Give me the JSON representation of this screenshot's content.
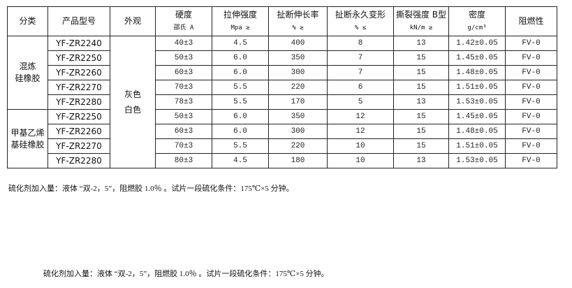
{
  "headers": [
    {
      "main": "分类",
      "sub": ""
    },
    {
      "main": "产品型号",
      "sub": ""
    },
    {
      "main": "外观",
      "sub": ""
    },
    {
      "main": "硬度",
      "sub": "邵氏 A"
    },
    {
      "main": "拉伸强度",
      "sub": "Mpa ≥"
    },
    {
      "main": "扯断伸长率",
      "sub": "% ≥"
    },
    {
      "main": "扯断永久变形",
      "sub": "% ≤"
    },
    {
      "main": "撕裂强度 B型",
      "sub": "kN/m ≥"
    },
    {
      "main": "密度",
      "sub": "g/cm³"
    },
    {
      "main": "阻燃性",
      "sub": ""
    }
  ],
  "categories": [
    {
      "line1": "混炼",
      "line2": "硅橡胶"
    },
    {
      "line1": "甲基乙烯",
      "line2": "基硅橡胶"
    }
  ],
  "appearance": {
    "line1": "灰色",
    "line2": "白色"
  },
  "rows": [
    [
      "YF-ZR2240",
      "40±3",
      "4.5",
      "400",
      "8",
      "13",
      "1.42±0.05",
      "FV-0"
    ],
    [
      "YF-ZR2250",
      "50±3",
      "6.0",
      "350",
      "7",
      "15",
      "1.45±0.05",
      "FV-0"
    ],
    [
      "YF-ZR2260",
      "60±3",
      "6.0",
      "300",
      "7",
      "15",
      "1.48±0.05",
      "FV-0"
    ],
    [
      "YF-ZR2270",
      "70±3",
      "5.5",
      "220",
      "6",
      "15",
      "1.51±0.05",
      "FV-0"
    ],
    [
      "YF-ZR2280",
      "78±3",
      "5.5",
      "170",
      "5",
      "13",
      "1.53±0.05",
      "FV-0"
    ],
    [
      "YF-ZR2250",
      "50±3",
      "6.0",
      "350",
      "12",
      "15",
      "1.45±0.05",
      "FV-0"
    ],
    [
      "YF-ZR2260",
      "60±3",
      "6.0",
      "300",
      "12",
      "15",
      "1.48±0.05",
      "FV-0"
    ],
    [
      "YF-ZR2270",
      "70±3",
      "5.5",
      "220",
      "10",
      "15",
      "1.51±0.05",
      "FV-0"
    ],
    [
      "YF-ZR2280",
      "80±3",
      "4.5",
      "180",
      "10",
      "13",
      "1.53±0.05",
      "FV-0"
    ]
  ],
  "notes": [
    "硫化剂加入量：液体 “双-2，5”，阻燃胶 1.0％ 。试片一段硫化条件：175℃×5 分钟。",
    "硫化剂加入量：液体 “双-2，5”，阻燃胶 1.0％ 。试片一段硫化条件：175℃×5 分钟。"
  ]
}
